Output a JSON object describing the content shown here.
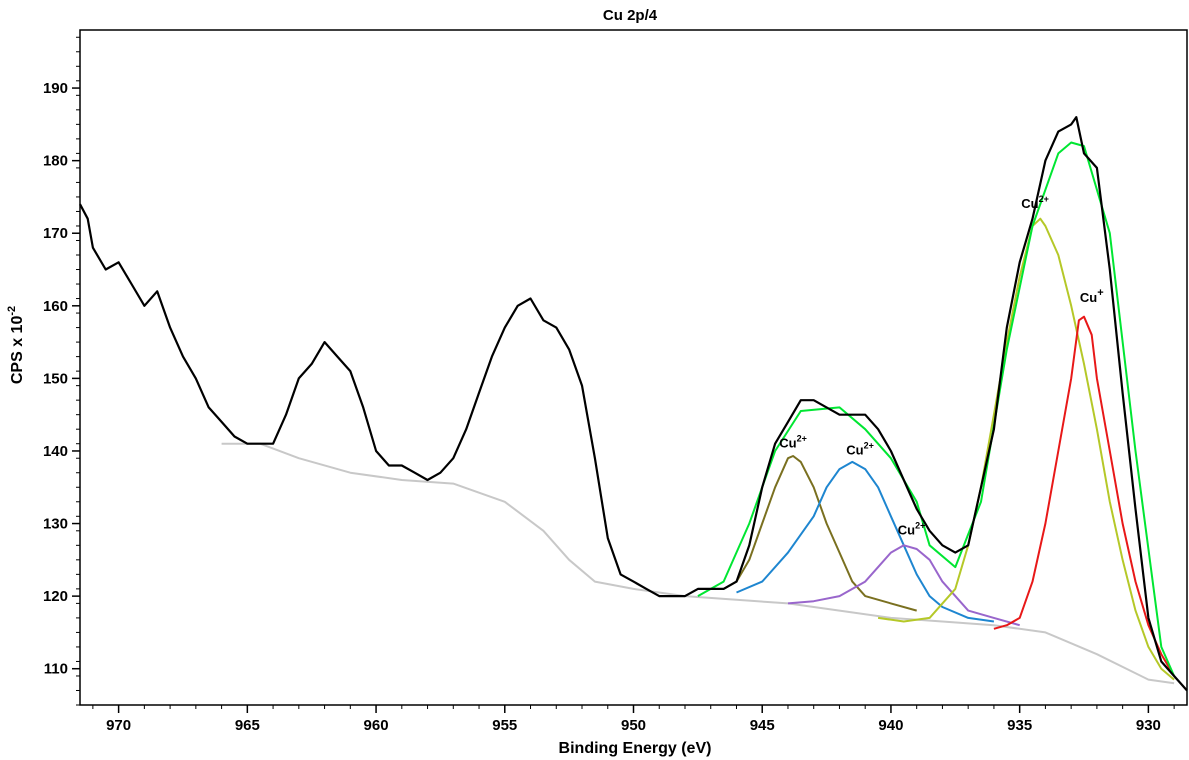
{
  "chart_data": {
    "type": "line",
    "title": "Cu 2p/4",
    "xlabel": "Binding Energy (eV)",
    "ylabel_base": "CPS x 10",
    "ylabel_exp": "-2",
    "xlim": [
      971.5,
      928.5
    ],
    "ylim": [
      105,
      198
    ],
    "x_reversed": true,
    "xticks": [
      970,
      965,
      960,
      955,
      950,
      945,
      940,
      935,
      930
    ],
    "yticks": [
      110,
      120,
      130,
      140,
      150,
      160,
      170,
      180,
      190
    ],
    "grid": false,
    "series": [
      {
        "color": "#000000",
        "points": [
          [
            971.5,
            174
          ],
          [
            971.2,
            172
          ],
          [
            971,
            168
          ],
          [
            970.5,
            165
          ],
          [
            970,
            166
          ],
          [
            969.5,
            163
          ],
          [
            969,
            160
          ],
          [
            968.5,
            162
          ],
          [
            968,
            157
          ],
          [
            967.5,
            153
          ],
          [
            967,
            150
          ],
          [
            966.5,
            146
          ],
          [
            966,
            144
          ],
          [
            965.5,
            142
          ],
          [
            965,
            141
          ],
          [
            964.5,
            141
          ],
          [
            964,
            141
          ],
          [
            963.5,
            145
          ],
          [
            963,
            150
          ],
          [
            962.5,
            152
          ],
          [
            962,
            155
          ],
          [
            961.5,
            153
          ],
          [
            961,
            151
          ],
          [
            960.5,
            146
          ],
          [
            960,
            140
          ],
          [
            959.5,
            138
          ],
          [
            959,
            138
          ],
          [
            958.5,
            137
          ],
          [
            958,
            136
          ],
          [
            957.5,
            137
          ],
          [
            957,
            139
          ],
          [
            956.5,
            143
          ],
          [
            956,
            148
          ],
          [
            955.5,
            153
          ],
          [
            955,
            157
          ],
          [
            954.5,
            160
          ],
          [
            954,
            161
          ],
          [
            953.5,
            158
          ],
          [
            953,
            157
          ],
          [
            952.5,
            154
          ],
          [
            952,
            149
          ],
          [
            951.5,
            139
          ],
          [
            951,
            128
          ],
          [
            950.5,
            123
          ],
          [
            950,
            122
          ],
          [
            949.5,
            121
          ],
          [
            949,
            120
          ],
          [
            948.5,
            120
          ],
          [
            948,
            120
          ],
          [
            947.5,
            121
          ],
          [
            947,
            121
          ],
          [
            946.5,
            121
          ],
          [
            946,
            122
          ],
          [
            945.5,
            127
          ],
          [
            945,
            135
          ],
          [
            944.5,
            141
          ],
          [
            944,
            144
          ],
          [
            943.5,
            147
          ],
          [
            943,
            147
          ],
          [
            942.5,
            146
          ],
          [
            942,
            145
          ],
          [
            941.5,
            145
          ],
          [
            941,
            145
          ],
          [
            940.5,
            143
          ],
          [
            940,
            140
          ],
          [
            939.5,
            136
          ],
          [
            939,
            132
          ],
          [
            938.5,
            129
          ],
          [
            938,
            127
          ],
          [
            937.5,
            126
          ],
          [
            937,
            127
          ],
          [
            936.5,
            135
          ],
          [
            936,
            143
          ],
          [
            935.5,
            157
          ],
          [
            935,
            166
          ],
          [
            934.5,
            172
          ],
          [
            934,
            180
          ],
          [
            933.5,
            184
          ],
          [
            933,
            185
          ],
          [
            932.8,
            186
          ],
          [
            932.5,
            181
          ],
          [
            932,
            179
          ],
          [
            931.5,
            165
          ],
          [
            931,
            148
          ],
          [
            930.5,
            132
          ],
          [
            930,
            117
          ],
          [
            929.5,
            111
          ],
          [
            929,
            109
          ],
          [
            928.5,
            107
          ]
        ]
      },
      {
        "color": "#00e632",
        "points": [
          [
            947.5,
            120
          ],
          [
            946.5,
            122
          ],
          [
            945.5,
            130
          ],
          [
            944.5,
            140
          ],
          [
            943.5,
            145.5
          ],
          [
            942,
            146
          ],
          [
            941,
            143
          ],
          [
            940,
            139
          ],
          [
            939,
            133
          ],
          [
            938.5,
            127
          ],
          [
            937.5,
            124
          ],
          [
            936.5,
            133
          ],
          [
            935.5,
            154
          ],
          [
            934.5,
            171
          ],
          [
            933.5,
            181
          ],
          [
            933,
            182.5
          ],
          [
            932.5,
            182
          ],
          [
            931.5,
            170
          ],
          [
            930.5,
            140
          ],
          [
            929.5,
            113
          ],
          [
            929,
            109
          ]
        ]
      },
      {
        "color": "#c8c8c8",
        "points": [
          [
            966,
            141
          ],
          [
            964.5,
            141
          ],
          [
            963,
            139
          ],
          [
            961,
            137
          ],
          [
            959,
            136
          ],
          [
            957,
            135.5
          ],
          [
            955,
            133
          ],
          [
            953.5,
            129
          ],
          [
            952.5,
            125
          ],
          [
            951.5,
            122
          ],
          [
            950,
            121
          ],
          [
            948,
            120
          ],
          [
            946,
            119.5
          ],
          [
            944,
            119
          ],
          [
            942,
            118
          ],
          [
            940,
            117
          ],
          [
            938,
            116.5
          ],
          [
            936,
            116
          ],
          [
            934,
            115
          ],
          [
            932,
            112
          ],
          [
            930,
            108.5
          ],
          [
            929,
            108
          ]
        ]
      },
      {
        "color": "#7a7020",
        "points": [
          [
            946.5,
            121
          ],
          [
            946,
            122
          ],
          [
            945.5,
            125
          ],
          [
            945,
            130
          ],
          [
            944.5,
            135
          ],
          [
            944,
            139
          ],
          [
            943.8,
            139.3
          ],
          [
            943.5,
            138.5
          ],
          [
            943,
            135
          ],
          [
            942.5,
            130
          ],
          [
            942,
            126
          ],
          [
            941.5,
            122
          ],
          [
            941,
            120
          ],
          [
            940,
            119
          ],
          [
            939,
            118
          ]
        ]
      },
      {
        "color": "#1e86d0",
        "points": [
          [
            946,
            120.5
          ],
          [
            945,
            122
          ],
          [
            944,
            126
          ],
          [
            943,
            131
          ],
          [
            942.5,
            135
          ],
          [
            942,
            137.5
          ],
          [
            941.5,
            138.5
          ],
          [
            941,
            137.5
          ],
          [
            940.5,
            135
          ],
          [
            940,
            131
          ],
          [
            939.5,
            127
          ],
          [
            939,
            123
          ],
          [
            938.5,
            120
          ],
          [
            938,
            118.5
          ],
          [
            937,
            117
          ],
          [
            936,
            116.5
          ]
        ]
      },
      {
        "color": "#9966cc",
        "points": [
          [
            944,
            119
          ],
          [
            943,
            119.3
          ],
          [
            942,
            120
          ],
          [
            941,
            122
          ],
          [
            940.5,
            124
          ],
          [
            940,
            126
          ],
          [
            939.5,
            127
          ],
          [
            939,
            126.5
          ],
          [
            938.5,
            125
          ],
          [
            938,
            122
          ],
          [
            937.5,
            120
          ],
          [
            937,
            118
          ],
          [
            936,
            117
          ],
          [
            935,
            116
          ]
        ]
      },
      {
        "color": "#b5c828",
        "points": [
          [
            940.5,
            117
          ],
          [
            939.5,
            116.5
          ],
          [
            938.5,
            117
          ],
          [
            937.5,
            121
          ],
          [
            937,
            127
          ],
          [
            936.5,
            135
          ],
          [
            936,
            145
          ],
          [
            935.5,
            155
          ],
          [
            935,
            164
          ],
          [
            934.5,
            171
          ],
          [
            934.2,
            172
          ],
          [
            934,
            171
          ],
          [
            933.5,
            167
          ],
          [
            933,
            160
          ],
          [
            932.5,
            152
          ],
          [
            932,
            143
          ],
          [
            931.5,
            133
          ],
          [
            931,
            125
          ],
          [
            930.5,
            118
          ],
          [
            930,
            113
          ],
          [
            929.5,
            110
          ],
          [
            929,
            108.5
          ]
        ]
      },
      {
        "color": "#e81818",
        "points": [
          [
            936,
            115.5
          ],
          [
            935.5,
            116
          ],
          [
            935,
            117
          ],
          [
            934.5,
            122
          ],
          [
            934,
            130
          ],
          [
            933.5,
            140
          ],
          [
            933,
            150
          ],
          [
            932.7,
            158
          ],
          [
            932.5,
            158.5
          ],
          [
            932.2,
            156
          ],
          [
            932,
            150
          ],
          [
            931.5,
            140
          ],
          [
            931,
            130
          ],
          [
            930.5,
            122
          ],
          [
            930,
            116
          ],
          [
            929.5,
            112
          ],
          [
            929,
            109
          ]
        ]
      }
    ],
    "annotations": [
      {
        "base": "Cu",
        "sup": "2+",
        "x": 943.8,
        "y": 140.5,
        "size": "small"
      },
      {
        "base": "Cu",
        "sup": "2+",
        "x": 941.2,
        "y": 139.5,
        "size": "small"
      },
      {
        "base": "Cu",
        "sup": "2+",
        "x": 939.2,
        "y": 128.5,
        "size": "small"
      },
      {
        "base": "Cu",
        "sup": "2+",
        "x": 934.4,
        "y": 173.5,
        "size": "small"
      },
      {
        "base": "Cu",
        "sup": "+",
        "x": 932.2,
        "y": 160.5,
        "size": "large"
      }
    ]
  }
}
